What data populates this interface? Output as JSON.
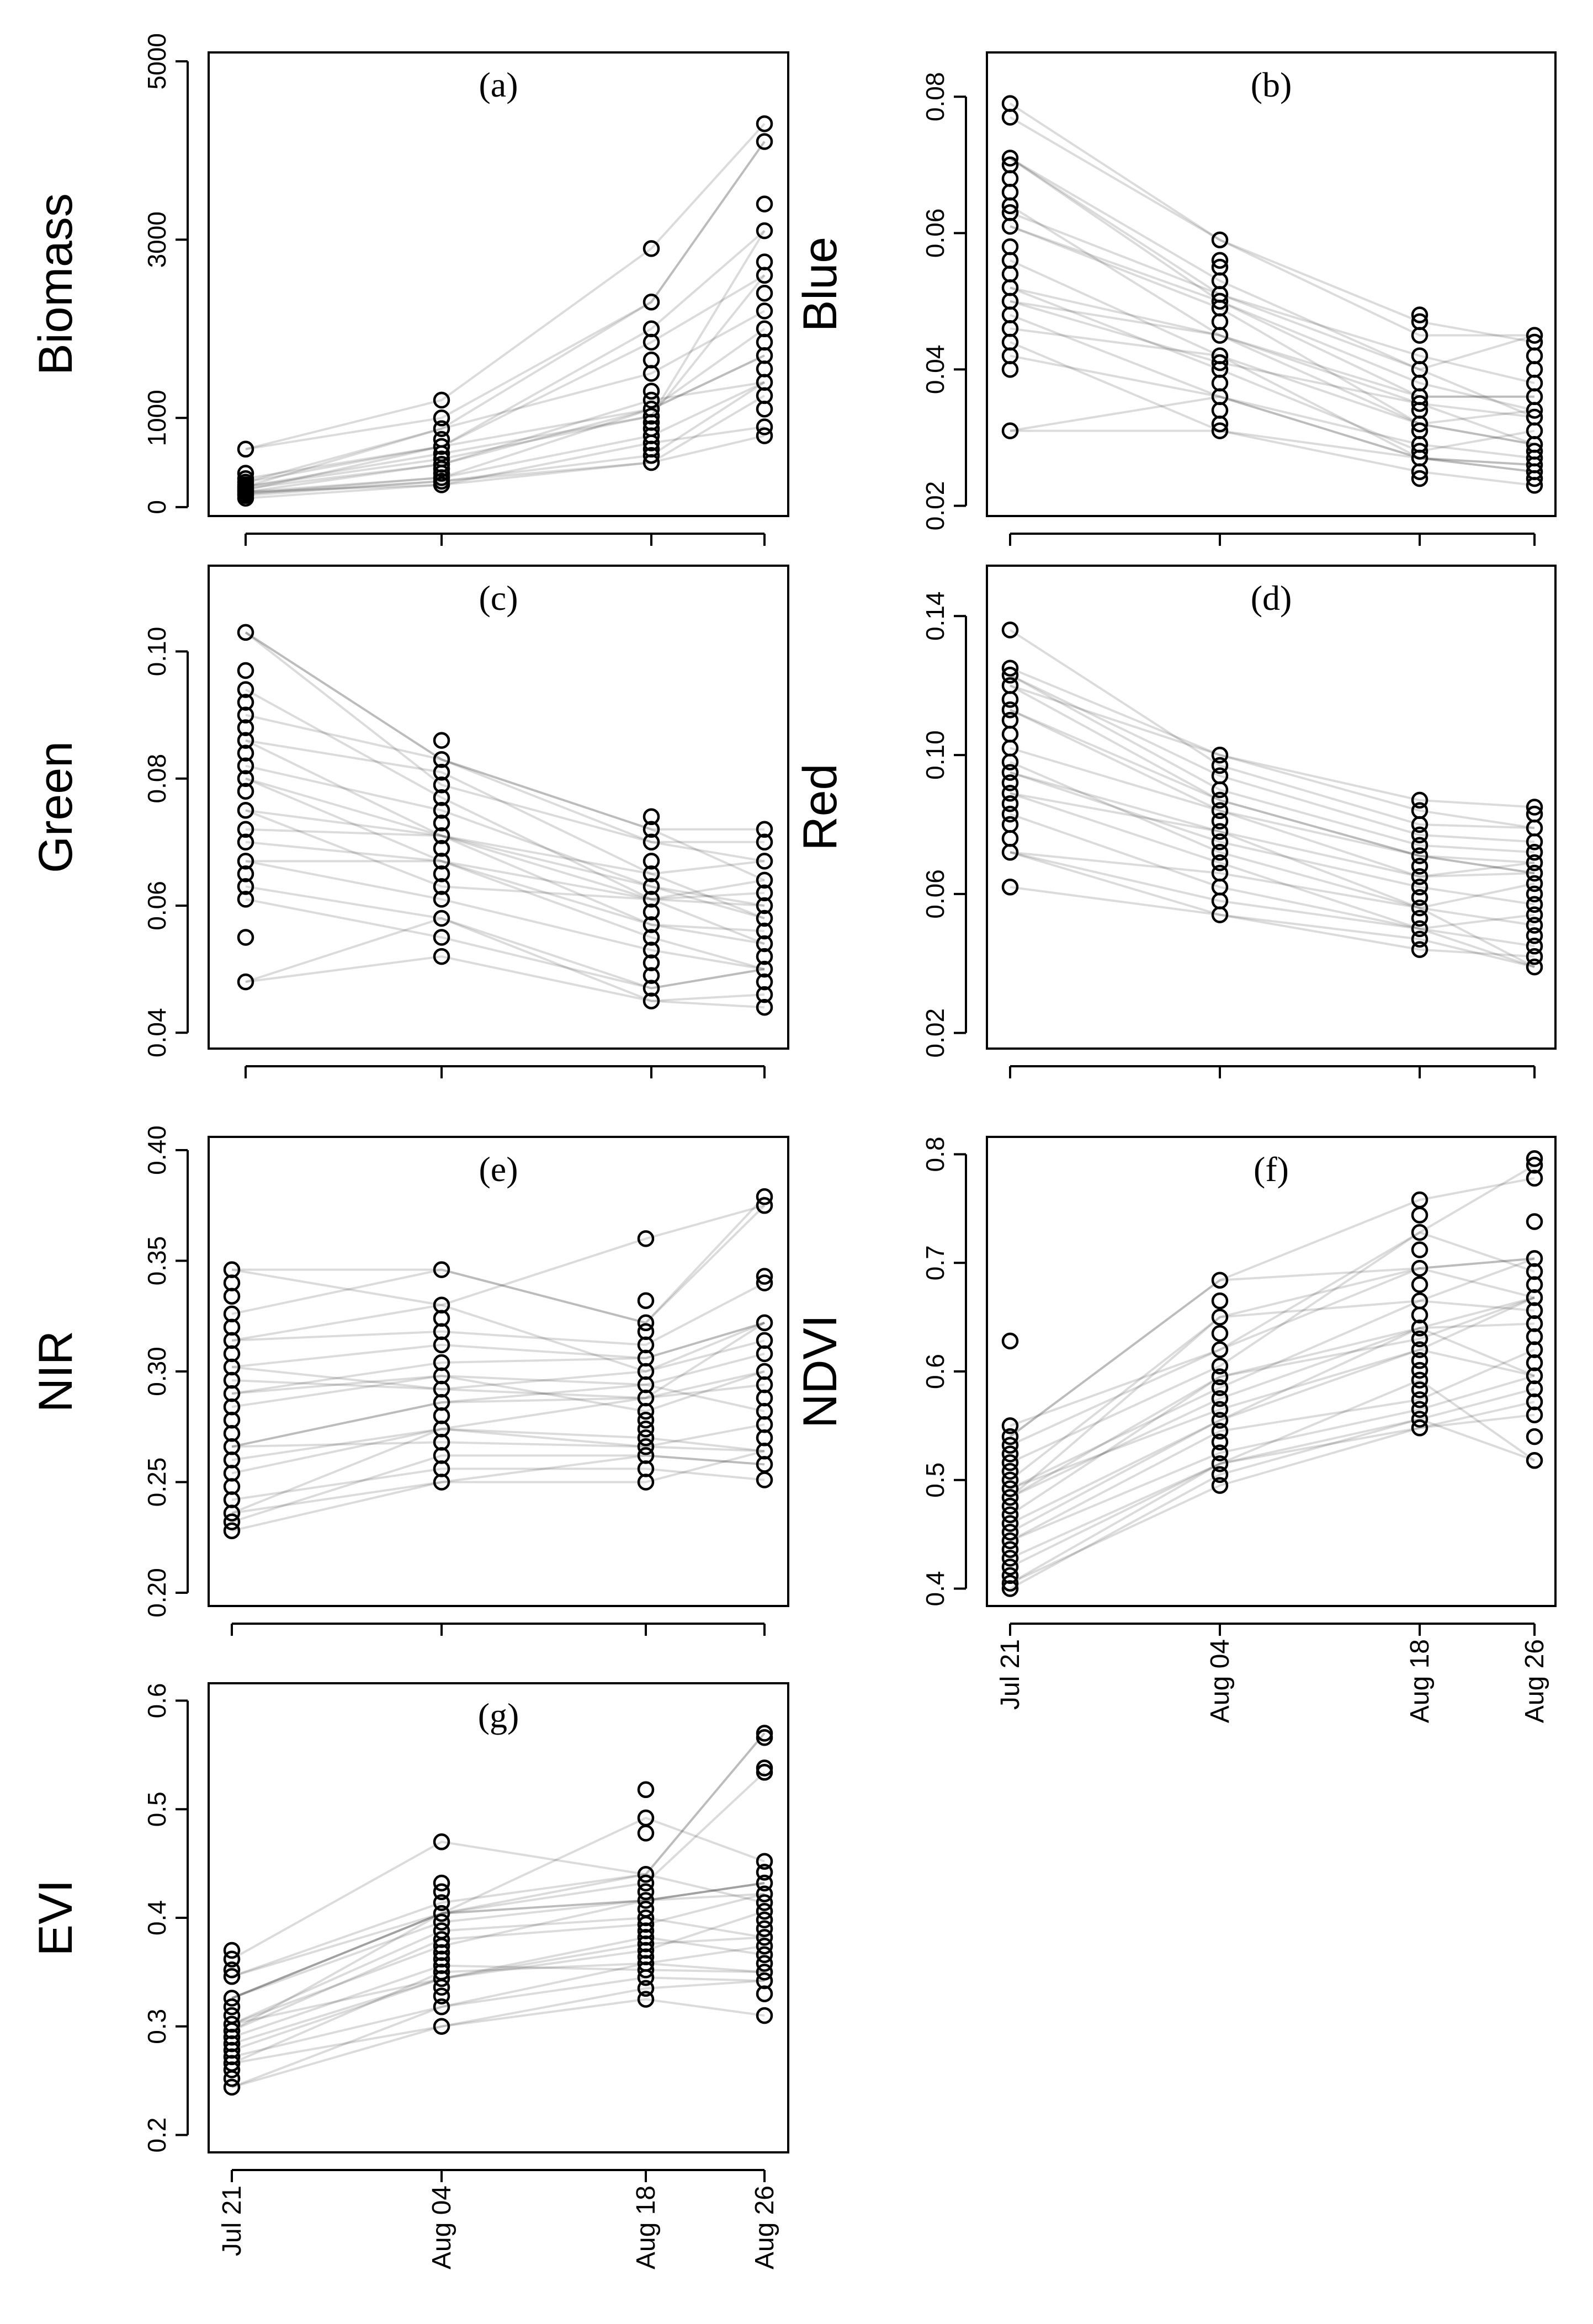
{
  "chart_data": [
    {
      "id": "a",
      "type": "scatter",
      "title": "(a)",
      "ylabel": "Biomass",
      "ylim": [
        -100,
        5100
      ],
      "yticks": [
        "0",
        "1000",
        "3000",
        "5000"
      ],
      "ytick_values": [
        0,
        1000,
        3000,
        5000
      ],
      "categories": [
        "Jul 21",
        "Aug 04",
        "Aug 18",
        "Aug 26"
      ],
      "series": [
        {
          "name": "Jul 21",
          "values": [
            100,
            130,
            150,
            170,
            190,
            210,
            230,
            250,
            280,
            320,
            380,
            650
          ]
        },
        {
          "name": "Aug 04",
          "values": [
            250,
            290,
            330,
            380,
            430,
            480,
            540,
            600,
            680,
            760,
            880,
            1000,
            1200
          ]
        },
        {
          "name": "Aug 18",
          "values": [
            500,
            580,
            650,
            720,
            800,
            880,
            950,
            1020,
            1100,
            1200,
            1300,
            1500,
            1650,
            1850,
            2000,
            2300,
            2900
          ]
        },
        {
          "name": "Aug 26",
          "values": [
            800,
            900,
            1100,
            1250,
            1400,
            1550,
            1700,
            1850,
            2000,
            2200,
            2400,
            2600,
            2750,
            3100,
            3400,
            4100,
            4300
          ]
        }
      ]
    },
    {
      "id": "b",
      "type": "scatter",
      "title": "(b)",
      "ylabel": "Blue",
      "ylim": [
        0.0185,
        0.0865
      ],
      "yticks": [
        "0.02",
        "0.04",
        "0.06",
        "0.08"
      ],
      "ytick_values": [
        0.02,
        0.04,
        0.06,
        0.08
      ],
      "categories": [
        "Jul 21",
        "Aug 04",
        "Aug 18",
        "Aug 26"
      ],
      "series": [
        {
          "name": "Jul 21",
          "values": [
            0.031,
            0.04,
            0.042,
            0.044,
            0.046,
            0.048,
            0.05,
            0.052,
            0.054,
            0.056,
            0.058,
            0.061,
            0.063,
            0.064,
            0.066,
            0.068,
            0.07,
            0.071,
            0.077,
            0.079
          ]
        },
        {
          "name": "Aug 04",
          "values": [
            0.031,
            0.032,
            0.034,
            0.036,
            0.038,
            0.04,
            0.041,
            0.042,
            0.045,
            0.047,
            0.049,
            0.05,
            0.051,
            0.053,
            0.055,
            0.056,
            0.059
          ]
        },
        {
          "name": "Aug 18",
          "values": [
            0.024,
            0.025,
            0.027,
            0.028,
            0.029,
            0.031,
            0.032,
            0.034,
            0.035,
            0.036,
            0.038,
            0.04,
            0.042,
            0.045,
            0.047,
            0.048
          ]
        },
        {
          "name": "Aug 26",
          "values": [
            0.023,
            0.024,
            0.025,
            0.026,
            0.027,
            0.028,
            0.029,
            0.031,
            0.033,
            0.034,
            0.036,
            0.038,
            0.04,
            0.042,
            0.044,
            0.045
          ]
        }
      ]
    },
    {
      "id": "c",
      "type": "scatter",
      "title": "(c)",
      "ylabel": "Green",
      "ylim": [
        0.0375,
        0.1135
      ],
      "yticks": [
        "0.04",
        "0.06",
        "0.08",
        "0.10"
      ],
      "ytick_values": [
        0.04,
        0.06,
        0.08,
        0.1
      ],
      "categories": [
        "Jul 21",
        "Aug 04",
        "Aug 18",
        "Aug 26"
      ],
      "series": [
        {
          "name": "Jul 21",
          "values": [
            0.048,
            0.055,
            0.061,
            0.063,
            0.065,
            0.067,
            0.07,
            0.072,
            0.075,
            0.078,
            0.08,
            0.082,
            0.084,
            0.086,
            0.088,
            0.09,
            0.092,
            0.094,
            0.097,
            0.103
          ]
        },
        {
          "name": "Aug 04",
          "values": [
            0.052,
            0.055,
            0.058,
            0.061,
            0.063,
            0.065,
            0.067,
            0.069,
            0.071,
            0.073,
            0.075,
            0.077,
            0.079,
            0.081,
            0.083,
            0.086
          ]
        },
        {
          "name": "Aug 18",
          "values": [
            0.045,
            0.047,
            0.049,
            0.051,
            0.053,
            0.055,
            0.057,
            0.059,
            0.061,
            0.063,
            0.065,
            0.067,
            0.07,
            0.072,
            0.074
          ]
        },
        {
          "name": "Aug 26",
          "values": [
            0.044,
            0.046,
            0.048,
            0.05,
            0.052,
            0.054,
            0.056,
            0.058,
            0.06,
            0.062,
            0.064,
            0.067,
            0.07,
            0.072
          ]
        }
      ]
    },
    {
      "id": "d",
      "type": "scatter",
      "title": "(d)",
      "ylabel": "Red",
      "ylim": [
        0.0155,
        0.1545
      ],
      "yticks": [
        "0.02",
        "0.06",
        "0.10",
        "0.14"
      ],
      "ytick_values": [
        0.02,
        0.06,
        0.1,
        0.14
      ],
      "categories": [
        "Jul 21",
        "Aug 04",
        "Aug 18",
        "Aug 26"
      ],
      "series": [
        {
          "name": "Jul 21",
          "values": [
            0.062,
            0.072,
            0.076,
            0.08,
            0.083,
            0.086,
            0.089,
            0.092,
            0.095,
            0.098,
            0.102,
            0.106,
            0.11,
            0.113,
            0.116,
            0.12,
            0.123,
            0.125,
            0.136
          ]
        },
        {
          "name": "Aug 04",
          "values": [
            0.054,
            0.058,
            0.062,
            0.066,
            0.069,
            0.072,
            0.075,
            0.078,
            0.081,
            0.084,
            0.087,
            0.09,
            0.094,
            0.097,
            0.1
          ]
        },
        {
          "name": "Aug 18",
          "values": [
            0.044,
            0.047,
            0.05,
            0.053,
            0.056,
            0.059,
            0.062,
            0.065,
            0.068,
            0.071,
            0.074,
            0.077,
            0.08,
            0.084,
            0.087
          ]
        },
        {
          "name": "Aug 26",
          "values": [
            0.039,
            0.042,
            0.045,
            0.048,
            0.051,
            0.054,
            0.057,
            0.06,
            0.063,
            0.066,
            0.069,
            0.072,
            0.075,
            0.079,
            0.083,
            0.085
          ]
        }
      ]
    },
    {
      "id": "e",
      "type": "scatter",
      "title": "(e)",
      "ylabel": "NIR",
      "ylim": [
        0.194,
        0.406
      ],
      "yticks": [
        "0.20",
        "0.25",
        "0.30",
        "0.35",
        "0.40"
      ],
      "ytick_values": [
        0.2,
        0.25,
        0.3,
        0.35,
        0.4
      ],
      "categories": [
        "Jul 21",
        "Aug 04",
        "Aug 18",
        "Aug 26"
      ],
      "series": [
        {
          "name": "Jul 21",
          "values": [
            0.228,
            0.232,
            0.236,
            0.242,
            0.248,
            0.254,
            0.26,
            0.266,
            0.272,
            0.278,
            0.284,
            0.29,
            0.296,
            0.302,
            0.308,
            0.314,
            0.32,
            0.326,
            0.334,
            0.34,
            0.346
          ]
        },
        {
          "name": "Aug 04",
          "values": [
            0.25,
            0.256,
            0.262,
            0.268,
            0.274,
            0.28,
            0.286,
            0.292,
            0.298,
            0.304,
            0.312,
            0.318,
            0.324,
            0.33,
            0.346
          ]
        },
        {
          "name": "Aug 18",
          "values": [
            0.25,
            0.256,
            0.262,
            0.266,
            0.27,
            0.274,
            0.278,
            0.282,
            0.288,
            0.294,
            0.3,
            0.306,
            0.312,
            0.318,
            0.322,
            0.332,
            0.36
          ]
        },
        {
          "name": "Aug 26",
          "values": [
            0.251,
            0.258,
            0.264,
            0.27,
            0.276,
            0.282,
            0.288,
            0.294,
            0.3,
            0.308,
            0.314,
            0.322,
            0.34,
            0.343,
            0.375,
            0.379
          ]
        }
      ]
    },
    {
      "id": "f",
      "type": "scatter",
      "title": "(f)",
      "ylabel": "NDVI",
      "ylim": [
        0.384,
        0.816
      ],
      "yticks": [
        "0.4",
        "0.5",
        "0.6",
        "0.7",
        "0.8"
      ],
      "ytick_values": [
        0.4,
        0.5,
        0.6,
        0.7,
        0.8
      ],
      "categories": [
        "Jul 21",
        "Aug 04",
        "Aug 18",
        "Aug 26"
      ],
      "series": [
        {
          "name": "Jul 21",
          "values": [
            0.4,
            0.405,
            0.412,
            0.42,
            0.428,
            0.436,
            0.444,
            0.452,
            0.46,
            0.468,
            0.476,
            0.484,
            0.492,
            0.5,
            0.508,
            0.516,
            0.524,
            0.532,
            0.54,
            0.55,
            0.628
          ]
        },
        {
          "name": "Aug 04",
          "values": [
            0.495,
            0.505,
            0.515,
            0.525,
            0.535,
            0.545,
            0.555,
            0.565,
            0.575,
            0.585,
            0.595,
            0.605,
            0.62,
            0.635,
            0.65,
            0.665,
            0.684
          ]
        },
        {
          "name": "Aug 18",
          "values": [
            0.548,
            0.556,
            0.565,
            0.574,
            0.583,
            0.592,
            0.601,
            0.61,
            0.62,
            0.63,
            0.64,
            0.652,
            0.665,
            0.68,
            0.695,
            0.712,
            0.728,
            0.744,
            0.758
          ]
        },
        {
          "name": "Aug 26",
          "values": [
            0.518,
            0.54,
            0.56,
            0.572,
            0.584,
            0.596,
            0.608,
            0.62,
            0.632,
            0.644,
            0.656,
            0.668,
            0.68,
            0.692,
            0.704,
            0.738,
            0.778,
            0.79,
            0.796
          ]
        }
      ]
    },
    {
      "id": "g",
      "type": "scatter",
      "title": "(g)",
      "ylabel": "EVI",
      "ylim": [
        0.184,
        0.616
      ],
      "yticks": [
        "0.2",
        "0.3",
        "0.4",
        "0.5",
        "0.6"
      ],
      "ytick_values": [
        0.2,
        0.3,
        0.4,
        0.5,
        0.6
      ],
      "categories": [
        "Jul 21",
        "Aug 04",
        "Aug 18",
        "Aug 26"
      ],
      "series": [
        {
          "name": "Jul 21",
          "values": [
            0.244,
            0.252,
            0.26,
            0.266,
            0.272,
            0.278,
            0.284,
            0.29,
            0.296,
            0.302,
            0.31,
            0.318,
            0.326,
            0.346,
            0.352,
            0.362,
            0.37
          ]
        },
        {
          "name": "Aug 04",
          "values": [
            0.3,
            0.318,
            0.328,
            0.336,
            0.344,
            0.35,
            0.356,
            0.362,
            0.368,
            0.374,
            0.38,
            0.388,
            0.396,
            0.404,
            0.414,
            0.424,
            0.432,
            0.47
          ]
        },
        {
          "name": "Aug 18",
          "values": [
            0.325,
            0.335,
            0.345,
            0.352,
            0.358,
            0.364,
            0.37,
            0.376,
            0.382,
            0.388,
            0.394,
            0.4,
            0.408,
            0.416,
            0.424,
            0.432,
            0.44,
            0.478,
            0.492,
            0.518
          ]
        },
        {
          "name": "Aug 26",
          "values": [
            0.31,
            0.33,
            0.342,
            0.35,
            0.358,
            0.366,
            0.374,
            0.382,
            0.39,
            0.398,
            0.406,
            0.414,
            0.422,
            0.432,
            0.442,
            0.452,
            0.534,
            0.538,
            0.566,
            0.57
          ]
        }
      ]
    }
  ],
  "x_axis_labels": [
    "Jul 21",
    "Aug 04",
    "Aug 18",
    "Aug 26"
  ]
}
